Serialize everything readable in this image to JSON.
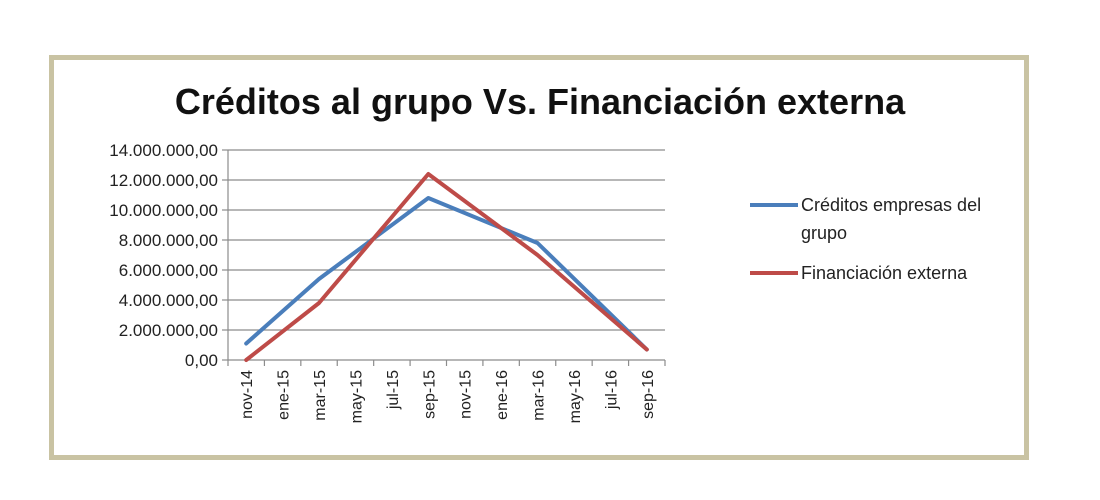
{
  "chart_data": {
    "type": "line",
    "title": "Créditos al grupo Vs. Financiación externa",
    "categories": [
      "nov-14",
      "ene-15",
      "mar-15",
      "may-15",
      "jul-15",
      "sep-15",
      "nov-15",
      "ene-16",
      "mar-16",
      "may-16",
      "jul-16",
      "sep-16"
    ],
    "y_tick_labels": [
      "0,00",
      "2.000.000,00",
      "4.000.000,00",
      "6.000.000,00",
      "8.000.000,00",
      "10.000.000,00",
      "12.000.000,00",
      "14.000.000,00"
    ],
    "ylim": [
      0,
      14000000
    ],
    "grid": true,
    "legend_position": "right",
    "series": [
      {
        "name": "Créditos empresas del grupo",
        "name_lines": [
          "Créditos empresas del",
          "grupo"
        ],
        "color": "#4a7ebb",
        "points": [
          [
            0,
            1100000
          ],
          [
            2,
            5400000
          ],
          [
            5,
            10800000
          ],
          [
            8,
            7800000
          ],
          [
            11,
            700000
          ]
        ]
      },
      {
        "name": "Financiación externa",
        "name_lines": [
          "Financiación externa"
        ],
        "color": "#be4b48",
        "points": [
          [
            0,
            0
          ],
          [
            2,
            3800000
          ],
          [
            5,
            12400000
          ],
          [
            8,
            7000000
          ],
          [
            11,
            700000
          ]
        ]
      }
    ]
  }
}
